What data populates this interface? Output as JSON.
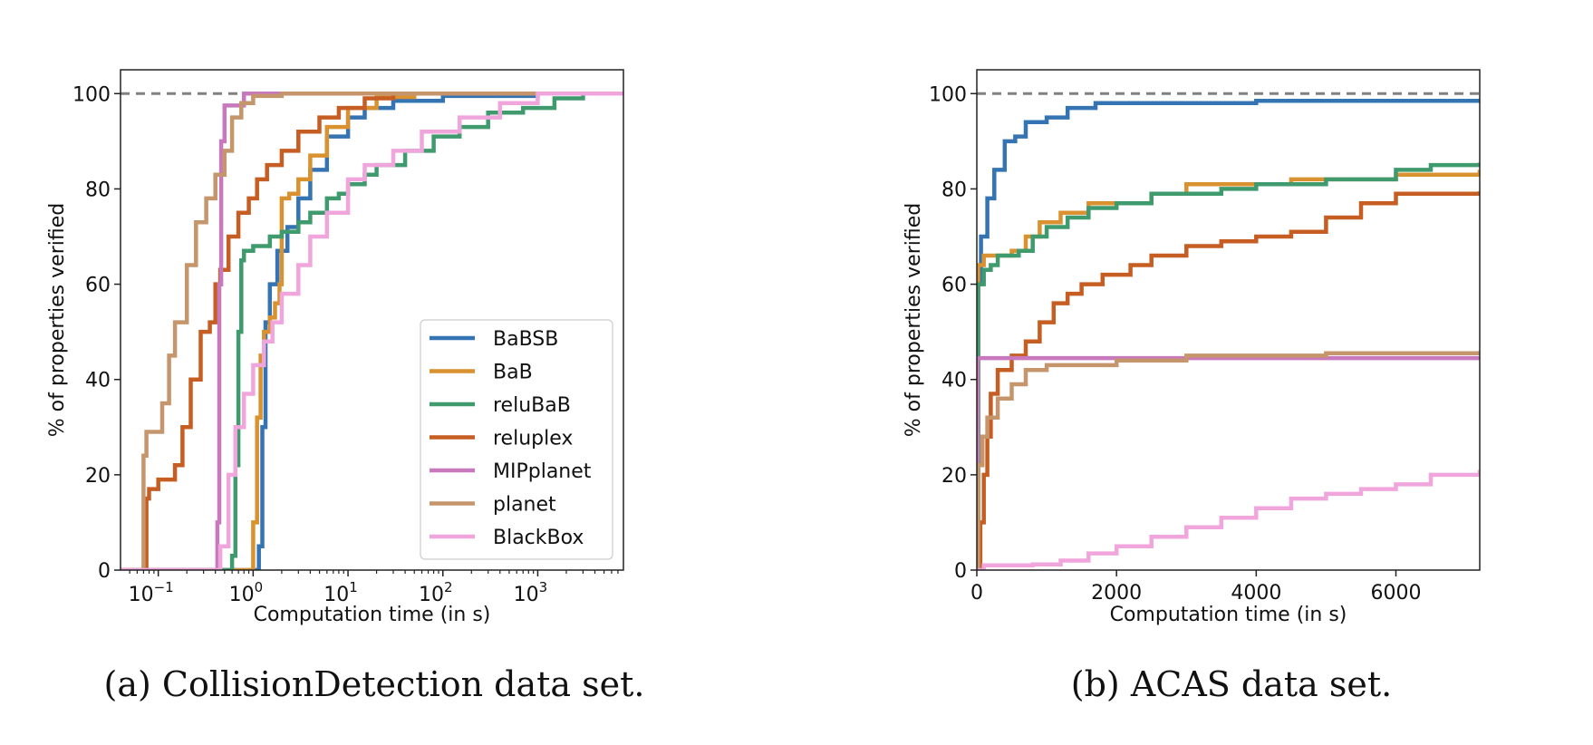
{
  "figure": {
    "captions": [
      "(a) CollisionDetection data set.",
      "(b) ACAS data set."
    ]
  },
  "chart_data": [
    {
      "id": "collision",
      "type": "line",
      "xscale": "log",
      "xlim": [
        0.04,
        8000
      ],
      "ylim": [
        0,
        105
      ],
      "xlabel": "Computation time (in s)",
      "ylabel": "% of properties verified",
      "x_ticks": [
        0.1,
        1,
        10,
        100,
        1000
      ],
      "x_tick_labels": [
        {
          "base": "10",
          "exp": "−1"
        },
        {
          "base": "10",
          "exp": "0"
        },
        {
          "base": "10",
          "exp": "1"
        },
        {
          "base": "10",
          "exp": "2"
        },
        {
          "base": "10",
          "exp": "3"
        }
      ],
      "y_ticks": [
        0,
        20,
        40,
        60,
        80,
        100
      ],
      "y_tick_labels": [
        "0",
        "20",
        "40",
        "60",
        "80",
        "100"
      ],
      "reference_line": {
        "y": 100,
        "style": "dashed"
      },
      "legend": {
        "position": "lower-right"
      },
      "series": [
        {
          "name": "BaBSB",
          "color": "#3474b3",
          "points": [
            [
              0.04,
              0
            ],
            [
              1.05,
              0
            ],
            [
              1.15,
              5
            ],
            [
              1.25,
              30
            ],
            [
              1.35,
              52
            ],
            [
              1.5,
              60
            ],
            [
              1.8,
              67
            ],
            [
              2.3,
              72
            ],
            [
              3,
              78
            ],
            [
              4,
              84
            ],
            [
              6,
              91
            ],
            [
              10,
              95
            ],
            [
              15,
              97
            ],
            [
              30,
              98.5
            ],
            [
              100,
              99.5
            ],
            [
              1000,
              100
            ],
            [
              8000,
              100
            ]
          ]
        },
        {
          "name": "BaB",
          "color": "#d9922f",
          "points": [
            [
              0.04,
              0
            ],
            [
              0.9,
              0
            ],
            [
              1.0,
              10
            ],
            [
              1.1,
              32
            ],
            [
              1.2,
              45
            ],
            [
              1.3,
              50
            ],
            [
              1.5,
              53
            ],
            [
              1.7,
              56
            ],
            [
              1.9,
              60
            ],
            [
              2.0,
              78
            ],
            [
              2.4,
              79
            ],
            [
              3,
              82
            ],
            [
              4,
              87
            ],
            [
              6,
              93
            ],
            [
              10,
              97
            ],
            [
              20,
              99.3
            ],
            [
              50,
              100
            ],
            [
              8000,
              100
            ]
          ]
        },
        {
          "name": "reluBaB",
          "color": "#3f9a6e",
          "points": [
            [
              0.04,
              0
            ],
            [
              0.55,
              0
            ],
            [
              0.6,
              3
            ],
            [
              0.65,
              22
            ],
            [
              0.7,
              50
            ],
            [
              0.75,
              65
            ],
            [
              0.8,
              67
            ],
            [
              1.0,
              68
            ],
            [
              1.5,
              70
            ],
            [
              2,
              71
            ],
            [
              3,
              73
            ],
            [
              4,
              75
            ],
            [
              6,
              78
            ],
            [
              8,
              79
            ],
            [
              10,
              81
            ],
            [
              15,
              83
            ],
            [
              20,
              85
            ],
            [
              40,
              88
            ],
            [
              80,
              91
            ],
            [
              150,
              93
            ],
            [
              300,
              96
            ],
            [
              700,
              97
            ],
            [
              1500,
              99
            ],
            [
              3000,
              100
            ],
            [
              8000,
              100
            ]
          ]
        },
        {
          "name": "reluplex",
          "color": "#c65d22",
          "points": [
            [
              0.04,
              0
            ],
            [
              0.07,
              0
            ],
            [
              0.075,
              15
            ],
            [
              0.08,
              17
            ],
            [
              0.1,
              19
            ],
            [
              0.13,
              19
            ],
            [
              0.15,
              22
            ],
            [
              0.18,
              30
            ],
            [
              0.22,
              40
            ],
            [
              0.28,
              50
            ],
            [
              0.35,
              52
            ],
            [
              0.4,
              60
            ],
            [
              0.45,
              63
            ],
            [
              0.55,
              70
            ],
            [
              0.7,
              75
            ],
            [
              0.9,
              78
            ],
            [
              1.1,
              82
            ],
            [
              1.4,
              85
            ],
            [
              2,
              88
            ],
            [
              3,
              92
            ],
            [
              5,
              95
            ],
            [
              8,
              97
            ],
            [
              15,
              99
            ],
            [
              30,
              100
            ],
            [
              8000,
              100
            ]
          ]
        },
        {
          "name": "MIPplanet",
          "color": "#c879bd",
          "points": [
            [
              0.04,
              0
            ],
            [
              0.4,
              0
            ],
            [
              0.42,
              10
            ],
            [
              0.44,
              60
            ],
            [
              0.46,
              90
            ],
            [
              0.5,
              97.5
            ],
            [
              0.7,
              97.5
            ],
            [
              0.8,
              100
            ],
            [
              8000,
              100
            ]
          ]
        },
        {
          "name": "planet",
          "color": "#c5956b",
          "points": [
            [
              0.04,
              0
            ],
            [
              0.065,
              0
            ],
            [
              0.07,
              24
            ],
            [
              0.075,
              29
            ],
            [
              0.1,
              29
            ],
            [
              0.11,
              35
            ],
            [
              0.13,
              45
            ],
            [
              0.15,
              52
            ],
            [
              0.17,
              52
            ],
            [
              0.2,
              64
            ],
            [
              0.25,
              73
            ],
            [
              0.32,
              78
            ],
            [
              0.4,
              83
            ],
            [
              0.5,
              88
            ],
            [
              0.6,
              95
            ],
            [
              0.75,
              98
            ],
            [
              1,
              99.5
            ],
            [
              2,
              100
            ],
            [
              8000,
              100
            ]
          ]
        },
        {
          "name": "BlackBox",
          "color": "#f0a6dc",
          "points": [
            [
              0.04,
              0
            ],
            [
              0.35,
              0
            ],
            [
              0.45,
              5
            ],
            [
              0.55,
              20
            ],
            [
              0.65,
              30
            ],
            [
              0.8,
              37
            ],
            [
              1.0,
              43
            ],
            [
              1.3,
              48
            ],
            [
              1.6,
              52
            ],
            [
              2,
              58
            ],
            [
              3,
              64
            ],
            [
              4,
              70
            ],
            [
              6,
              75
            ],
            [
              10,
              82
            ],
            [
              15,
              85
            ],
            [
              30,
              88
            ],
            [
              60,
              92
            ],
            [
              150,
              95
            ],
            [
              400,
              98
            ],
            [
              1000,
              100
            ],
            [
              8000,
              100
            ]
          ]
        }
      ]
    },
    {
      "id": "acas",
      "type": "line",
      "xscale": "linear",
      "xlim": [
        0,
        7200
      ],
      "ylim": [
        0,
        105
      ],
      "xlabel": "Computation time (in s)",
      "ylabel": "% of properties verified",
      "x_ticks": [
        0,
        2000,
        4000,
        6000
      ],
      "x_tick_labels": [
        "0",
        "2000",
        "4000",
        "6000"
      ],
      "y_ticks": [
        0,
        20,
        40,
        60,
        80,
        100
      ],
      "y_tick_labels": [
        "0",
        "20",
        "40",
        "60",
        "80",
        "100"
      ],
      "reference_line": {
        "y": 100,
        "style": "dashed"
      },
      "series": [
        {
          "name": "BaBSB",
          "color": "#3474b3",
          "points": [
            [
              0,
              0
            ],
            [
              20,
              60
            ],
            [
              60,
              70
            ],
            [
              150,
              78
            ],
            [
              250,
              84
            ],
            [
              400,
              90
            ],
            [
              550,
              91
            ],
            [
              700,
              94
            ],
            [
              1000,
              95
            ],
            [
              1300,
              97
            ],
            [
              1700,
              98
            ],
            [
              3000,
              98
            ],
            [
              4000,
              98.5
            ],
            [
              7200,
              98.5
            ]
          ]
        },
        {
          "name": "BaB",
          "color": "#d9922f",
          "points": [
            [
              0,
              0
            ],
            [
              20,
              64
            ],
            [
              100,
              66
            ],
            [
              500,
              67
            ],
            [
              700,
              70
            ],
            [
              900,
              73
            ],
            [
              1200,
              75
            ],
            [
              1600,
              77
            ],
            [
              2500,
              79
            ],
            [
              3000,
              81
            ],
            [
              4500,
              82
            ],
            [
              6000,
              83
            ],
            [
              7200,
              84
            ]
          ]
        },
        {
          "name": "reluBaB",
          "color": "#3f9a6e",
          "points": [
            [
              0,
              0
            ],
            [
              20,
              60
            ],
            [
              100,
              63
            ],
            [
              200,
              64
            ],
            [
              300,
              66
            ],
            [
              600,
              67
            ],
            [
              800,
              70
            ],
            [
              1000,
              72
            ],
            [
              1300,
              74
            ],
            [
              1600,
              76
            ],
            [
              2000,
              77
            ],
            [
              2500,
              79
            ],
            [
              3500,
              80
            ],
            [
              4000,
              81
            ],
            [
              5000,
              82
            ],
            [
              6000,
              84
            ],
            [
              6500,
              85
            ],
            [
              7200,
              85.5
            ]
          ]
        },
        {
          "name": "reluplex",
          "color": "#c65d22",
          "points": [
            [
              0,
              0
            ],
            [
              50,
              10
            ],
            [
              100,
              20
            ],
            [
              150,
              28
            ],
            [
              200,
              37
            ],
            [
              300,
              42
            ],
            [
              500,
              45
            ],
            [
              700,
              48
            ],
            [
              900,
              52
            ],
            [
              1100,
              56
            ],
            [
              1300,
              58
            ],
            [
              1500,
              60
            ],
            [
              1800,
              62
            ],
            [
              2200,
              64
            ],
            [
              2500,
              66
            ],
            [
              3000,
              68
            ],
            [
              3500,
              69
            ],
            [
              4000,
              70
            ],
            [
              4500,
              71
            ],
            [
              5000,
              74
            ],
            [
              5500,
              77
            ],
            [
              6000,
              79
            ],
            [
              7200,
              79.5
            ]
          ]
        },
        {
          "name": "MIPplanet",
          "color": "#c879bd",
          "points": [
            [
              0,
              0
            ],
            [
              10,
              44.5
            ],
            [
              7200,
              44.5
            ]
          ]
        },
        {
          "name": "planet",
          "color": "#c5956b",
          "points": [
            [
              0,
              0
            ],
            [
              20,
              22
            ],
            [
              80,
              28
            ],
            [
              150,
              32
            ],
            [
              300,
              36
            ],
            [
              500,
              39
            ],
            [
              700,
              42
            ],
            [
              1000,
              43
            ],
            [
              2000,
              44
            ],
            [
              3000,
              45
            ],
            [
              5000,
              45.5
            ],
            [
              7200,
              46
            ]
          ]
        },
        {
          "name": "BlackBox",
          "color": "#f0a6dc",
          "points": [
            [
              0,
              0
            ],
            [
              100,
              1
            ],
            [
              800,
              1.2
            ],
            [
              1200,
              2
            ],
            [
              1600,
              3.5
            ],
            [
              2000,
              5
            ],
            [
              2500,
              7
            ],
            [
              3000,
              9
            ],
            [
              3500,
              11
            ],
            [
              4000,
              13
            ],
            [
              4500,
              15
            ],
            [
              5000,
              16
            ],
            [
              5500,
              17
            ],
            [
              6000,
              18
            ],
            [
              6500,
              20
            ],
            [
              7200,
              21
            ]
          ]
        }
      ]
    }
  ]
}
